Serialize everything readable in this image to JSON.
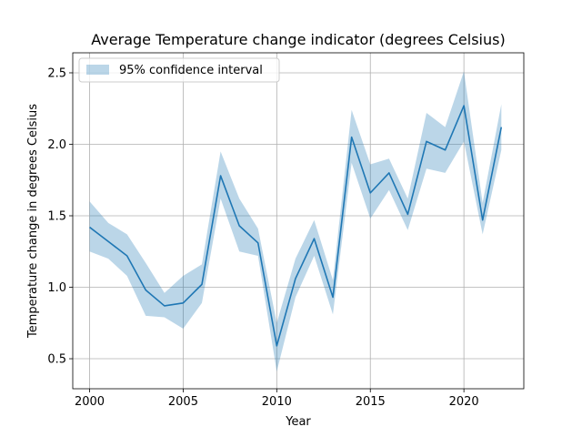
{
  "chart_data": {
    "type": "line",
    "title": "Average Temperature change indicator (degrees Celsius)",
    "xlabel": "Year",
    "ylabel": "Temperature change in degrees Celsius",
    "xlim": [
      1999.1,
      2023.2
    ],
    "ylim": [
      0.29,
      2.64
    ],
    "xticks": [
      2000,
      2005,
      2010,
      2015,
      2020
    ],
    "yticks": [
      0.5,
      1.0,
      1.5,
      2.0,
      2.5
    ],
    "ytick_labels": [
      "0.5",
      "1.0",
      "1.5",
      "2.0",
      "2.5"
    ],
    "grid": true,
    "legend_position": "top-left",
    "legend_entries": [
      "95% confidence interval"
    ],
    "colors": {
      "line": "#1f77b4",
      "band": "#1f77b4",
      "band_opacity": 0.3
    },
    "x": [
      2000,
      2001,
      2002,
      2003,
      2004,
      2005,
      2006,
      2007,
      2008,
      2009,
      2010,
      2011,
      2012,
      2013,
      2014,
      2015,
      2016,
      2017,
      2018,
      2019,
      2020,
      2021,
      2022
    ],
    "y": [
      1.42,
      1.32,
      1.22,
      0.98,
      0.87,
      0.89,
      1.02,
      1.78,
      1.43,
      1.31,
      0.59,
      1.06,
      1.34,
      0.93,
      2.05,
      1.66,
      1.8,
      1.51,
      2.02,
      1.96,
      2.27,
      1.47,
      2.12
    ],
    "ci_lower": [
      1.25,
      1.2,
      1.08,
      0.8,
      0.79,
      0.71,
      0.89,
      1.62,
      1.25,
      1.22,
      0.41,
      0.93,
      1.22,
      0.81,
      1.87,
      1.48,
      1.68,
      1.4,
      1.83,
      1.8,
      2.02,
      1.37,
      1.96
    ],
    "ci_upper": [
      1.6,
      1.45,
      1.37,
      1.17,
      0.96,
      1.08,
      1.16,
      1.95,
      1.62,
      1.41,
      0.75,
      1.2,
      1.47,
      1.05,
      2.24,
      1.86,
      1.9,
      1.62,
      2.22,
      2.12,
      2.51,
      1.59,
      2.28
    ]
  }
}
